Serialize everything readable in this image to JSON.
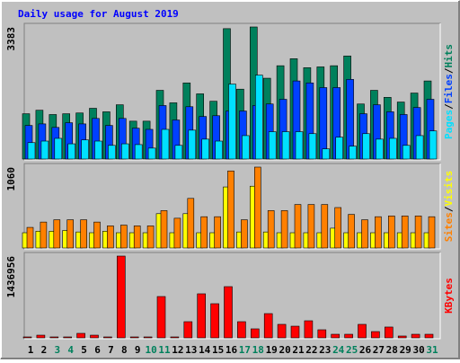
{
  "title": "Daily usage for August 2019",
  "chart_data": [
    {
      "type": "bar",
      "ylim": [
        0,
        3383
      ],
      "legend_separator": "/",
      "series": [
        {
          "name": "Hits",
          "color": "#00805c",
          "values": [
            1160,
            1250,
            1140,
            1160,
            1180,
            1300,
            1210,
            1390,
            970,
            970,
            1760,
            1440,
            1950,
            1670,
            1480,
            3340,
            1790,
            3383,
            2070,
            2390,
            2570,
            2340,
            2360,
            2390,
            2640,
            1410,
            1760,
            1580,
            1460,
            1690,
            2000
          ]
        },
        {
          "name": "Files",
          "color": "#0040ff",
          "values": [
            860,
            900,
            810,
            930,
            900,
            1040,
            860,
            1040,
            790,
            760,
            1370,
            1000,
            1340,
            1090,
            1110,
            1230,
            1230,
            1370,
            1410,
            1530,
            2000,
            1950,
            1830,
            1830,
            2040,
            1160,
            1390,
            1210,
            1140,
            1320,
            1530
          ]
        },
        {
          "name": "Pages",
          "color": "#00e0ff",
          "values": [
            420,
            460,
            530,
            390,
            490,
            460,
            350,
            390,
            370,
            280,
            760,
            350,
            740,
            510,
            460,
            1920,
            600,
            2150,
            700,
            700,
            700,
            650,
            260,
            560,
            330,
            650,
            510,
            530,
            350,
            600,
            720
          ]
        }
      ]
    },
    {
      "type": "bar",
      "ylim": [
        0,
        1060
      ],
      "legend_separator": "/",
      "series": [
        {
          "name": "Visits",
          "color": "#ffff00",
          "values": [
            200,
            220,
            220,
            230,
            210,
            200,
            220,
            200,
            200,
            200,
            450,
            200,
            450,
            200,
            200,
            800,
            210,
            810,
            210,
            200,
            200,
            200,
            200,
            260,
            200,
            200,
            200,
            200,
            200,
            200,
            200
          ]
        },
        {
          "name": "Sites",
          "color": "#ff8000",
          "values": [
            270,
            340,
            370,
            370,
            370,
            340,
            290,
            300,
            290,
            290,
            490,
            390,
            650,
            410,
            410,
            1010,
            370,
            1060,
            490,
            490,
            570,
            570,
            570,
            530,
            440,
            370,
            410,
            420,
            420,
            420,
            410
          ]
        }
      ]
    },
    {
      "type": "bar",
      "ylim": [
        0,
        1436956
      ],
      "categories": [
        "1",
        "2",
        "3",
        "4",
        "5",
        "6",
        "7",
        "8",
        "9",
        "10",
        "11",
        "12",
        "13",
        "14",
        "15",
        "16",
        "17",
        "18",
        "19",
        "20",
        "21",
        "22",
        "23",
        "24",
        "25",
        "26",
        "27",
        "28",
        "29",
        "30",
        "31"
      ],
      "weekend_indices": [
        2,
        3,
        9,
        10,
        16,
        17,
        23,
        24,
        30
      ],
      "weekend_color": "#00805c",
      "series": [
        {
          "name": "KBytes",
          "color": "#ff0000",
          "values": [
            16000,
            47000,
            16000,
            16000,
            79000,
            47000,
            16000,
            1436956,
            16000,
            16000,
            726000,
            16000,
            284000,
            774000,
            600000,
            900000,
            284000,
            158000,
            426000,
            237000,
            205000,
            300000,
            142000,
            63000,
            63000,
            237000,
            110000,
            190000,
            32000,
            63000,
            63000
          ]
        }
      ]
    }
  ]
}
